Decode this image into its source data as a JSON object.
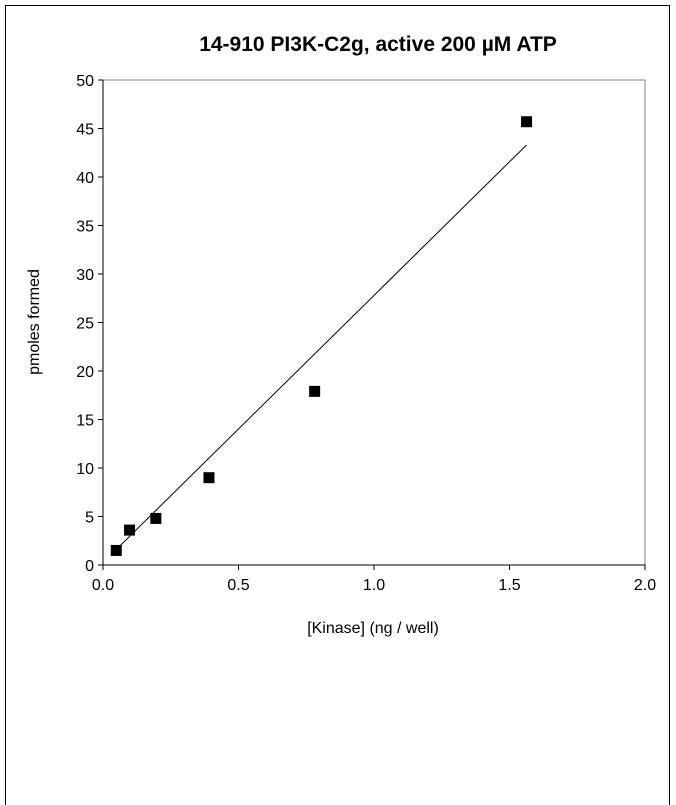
{
  "chart_data": {
    "type": "scatter",
    "title": "14-910 PI3K-C2g, active 200 µM ATP",
    "xlabel": "[Kinase] (ng / well)",
    "ylabel": "pmoles formed",
    "xlim": [
      0,
      2.0
    ],
    "ylim": [
      0,
      50
    ],
    "xticks": [
      "0.0",
      "0.5",
      "1.0",
      "1.5",
      "2.0"
    ],
    "yticks": [
      "0",
      "5",
      "10",
      "15",
      "20",
      "25",
      "30",
      "35",
      "40",
      "45",
      "50"
    ],
    "grid": false,
    "legend": "none",
    "marker_color": "#000000",
    "series": [
      {
        "x": [
          0.049,
          0.098,
          0.195,
          0.391,
          0.781,
          1.563
        ],
        "y": [
          1.5,
          3.6,
          4.8,
          9.0,
          17.9,
          45.7
        ]
      }
    ],
    "trendline": {
      "x": [
        0.049,
        1.563
      ],
      "y": [
        1.6,
        43.3
      ]
    }
  }
}
